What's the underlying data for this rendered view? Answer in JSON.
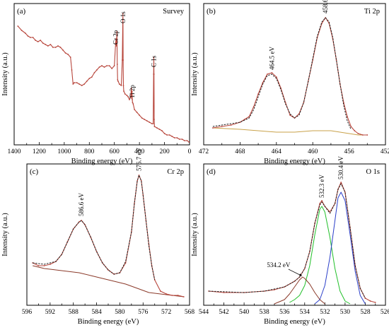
{
  "colors": {
    "data": "#b8463c",
    "envelope": "#222222",
    "background_fit": "#c9a24a",
    "background_brown": "#8b3a2a",
    "peak_blue": "#2b3fc9",
    "peak_green": "#22c02a",
    "peak_purple": "#7a2a9a",
    "peak_brown": "#8b3a2a"
  },
  "chart_data": [
    {
      "type": "line",
      "panel_label": "(a)",
      "title": "Survey",
      "xlabel": "Binding energy (eV)",
      "ylabel": "Intensity (a.u.)",
      "xlim": [
        1400,
        0
      ],
      "xticks": [
        "1400",
        "1200",
        "1000",
        "800",
        "600",
        "400",
        "200",
        "0"
      ],
      "y_ticks_labeled": false,
      "series": [
        {
          "role": "spectrum",
          "color": "#b8463c",
          "x": [
            1370,
            1340,
            1310,
            1290,
            1270,
            1250,
            1230,
            1210,
            1190,
            1170,
            1150,
            1130,
            1110,
            1090,
            1070,
            1050,
            1030,
            1010,
            990,
            970,
            950,
            940,
            930,
            920,
            900,
            880,
            860,
            840,
            820,
            800,
            780,
            760,
            740,
            720,
            700,
            680,
            660,
            640,
            620,
            600,
            590,
            586,
            583,
            580,
            577,
            574,
            570,
            560,
            545,
            537,
            532,
            530,
            528,
            525,
            515,
            500,
            490,
            480,
            470,
            464,
            462,
            459,
            457,
            455,
            450,
            440,
            420,
            400,
            380,
            360,
            340,
            320,
            300,
            290,
            287,
            285,
            284,
            282,
            280,
            260,
            240,
            220,
            200,
            180,
            160,
            140,
            120,
            100,
            80,
            60,
            40,
            20,
            5
          ],
          "y": [
            0.84,
            0.81,
            0.79,
            0.77,
            0.76,
            0.76,
            0.74,
            0.73,
            0.74,
            0.72,
            0.71,
            0.7,
            0.71,
            0.69,
            0.69,
            0.7,
            0.69,
            0.67,
            0.65,
            0.64,
            0.62,
            0.53,
            0.43,
            0.44,
            0.44,
            0.43,
            0.42,
            0.43,
            0.45,
            0.47,
            0.48,
            0.51,
            0.53,
            0.55,
            0.56,
            0.55,
            0.56,
            0.56,
            0.54,
            0.56,
            0.72,
            0.75,
            0.7,
            0.8,
            0.57,
            0.46,
            0.45,
            0.43,
            0.42,
            0.6,
            0.93,
            0.6,
            0.42,
            0.38,
            0.36,
            0.35,
            0.34,
            0.32,
            0.34,
            0.4,
            0.33,
            0.38,
            0.32,
            0.3,
            0.29,
            0.25,
            0.23,
            0.21,
            0.19,
            0.18,
            0.17,
            0.16,
            0.15,
            0.15,
            0.5,
            0.62,
            0.5,
            0.18,
            0.13,
            0.12,
            0.11,
            0.1,
            0.08,
            0.07,
            0.07,
            0.06,
            0.05,
            0.05,
            0.04,
            0.04,
            0.03,
            0.03,
            0.02
          ]
        }
      ],
      "annotations": [
        {
          "text": "Cr 2p",
          "x": 590,
          "y": 0.82
        },
        {
          "text": "O 1s",
          "x": 530,
          "y": 0.97
        },
        {
          "text": "Ti 2p",
          "x": 458,
          "y": 0.44
        },
        {
          "text": "C 1s",
          "x": 285,
          "y": 0.66
        }
      ]
    },
    {
      "type": "line",
      "panel_label": "(b)",
      "title": "Ti 2p",
      "xlabel": "Binding energy (eV)",
      "ylabel": "Intensity (a.u.)",
      "xlim": [
        472,
        452
      ],
      "xticks": [
        "472",
        "468",
        "464",
        "460",
        "456",
        "452"
      ],
      "y_ticks_labeled": false,
      "series": [
        {
          "role": "spectrum",
          "color": "#b8463c",
          "x": [
            471,
            470,
            469,
            468,
            467.5,
            467,
            466.5,
            466,
            465.5,
            465,
            464.5,
            464,
            463.5,
            463,
            462.5,
            462,
            461.5,
            461,
            460.5,
            460,
            459.5,
            459,
            458.6,
            458.2,
            457.8,
            457.4,
            457,
            456.6,
            456.2,
            455.8,
            455.4,
            455,
            454.5,
            454
          ],
          "y": [
            0.12,
            0.13,
            0.14,
            0.16,
            0.18,
            0.2,
            0.27,
            0.36,
            0.44,
            0.5,
            0.51,
            0.48,
            0.4,
            0.3,
            0.21,
            0.19,
            0.22,
            0.3,
            0.45,
            0.6,
            0.76,
            0.86,
            0.9,
            0.86,
            0.75,
            0.6,
            0.43,
            0.3,
            0.2,
            0.13,
            0.1,
            0.08,
            0.07,
            0.07
          ]
        },
        {
          "role": "fit-envelope",
          "color": "#222222",
          "dashed": true,
          "x": [
            471,
            470,
            469,
            468,
            467,
            466.5,
            466,
            465.5,
            465,
            464.5,
            464,
            463.5,
            463,
            462.5,
            462,
            461.5,
            461,
            460.5,
            460,
            459.5,
            459,
            458.6,
            458.2,
            457.8,
            457.4,
            457,
            456.6,
            456.2,
            455.8
          ],
          "y": [
            0.13,
            0.14,
            0.15,
            0.16,
            0.19,
            0.25,
            0.34,
            0.43,
            0.49,
            0.5,
            0.47,
            0.39,
            0.29,
            0.22,
            0.19,
            0.21,
            0.3,
            0.45,
            0.61,
            0.77,
            0.87,
            0.9,
            0.87,
            0.76,
            0.6,
            0.43,
            0.28,
            0.17,
            0.11
          ]
        },
        {
          "role": "background",
          "color": "#c9a24a",
          "x": [
            471,
            468,
            466,
            464,
            462,
            460,
            458,
            457,
            456,
            455,
            454
          ],
          "y": [
            0.12,
            0.11,
            0.1,
            0.09,
            0.09,
            0.1,
            0.1,
            0.09,
            0.08,
            0.07,
            0.07
          ]
        }
      ],
      "peak_labels": [
        {
          "text": "464.5 eV",
          "x": 464.5,
          "y": 0.53
        },
        {
          "text": "458.6 eV",
          "x": 458.6,
          "y": 0.93
        }
      ]
    },
    {
      "type": "line",
      "panel_label": "(c)",
      "title": "Cr 2p",
      "xlabel": "Binding energy (eV)",
      "ylabel": "Intensity (a.u.)",
      "xlim": [
        596,
        568
      ],
      "xticks": [
        "596",
        "592",
        "588",
        "584",
        "580",
        "576",
        "572",
        "568"
      ],
      "y_ticks_labeled": false,
      "series": [
        {
          "role": "spectrum",
          "color": "#b8463c",
          "x": [
            595,
            594,
            593,
            592,
            591,
            590,
            589,
            588,
            587,
            586.6,
            586,
            585,
            584,
            583,
            582,
            581,
            580,
            579,
            578,
            577.5,
            577,
            576.7,
            576.3,
            576,
            575.5,
            575,
            574.5,
            574,
            573,
            572,
            571,
            570,
            569
          ],
          "y": [
            0.3,
            0.28,
            0.28,
            0.29,
            0.31,
            0.36,
            0.45,
            0.54,
            0.59,
            0.6,
            0.57,
            0.48,
            0.38,
            0.3,
            0.25,
            0.22,
            0.23,
            0.3,
            0.52,
            0.72,
            0.88,
            0.92,
            0.88,
            0.78,
            0.6,
            0.43,
            0.28,
            0.18,
            0.1,
            0.08,
            0.07,
            0.07,
            0.06
          ]
        },
        {
          "role": "fit-envelope",
          "color": "#222222",
          "dashed": true,
          "x": [
            595,
            593,
            591,
            590,
            589,
            588,
            587,
            586.6,
            586,
            585,
            584,
            583,
            582,
            581,
            580,
            579,
            578,
            577.5,
            577,
            576.7,
            576.3,
            576,
            575.5,
            575,
            574.5,
            574
          ],
          "y": [
            0.3,
            0.29,
            0.31,
            0.36,
            0.45,
            0.54,
            0.59,
            0.6,
            0.57,
            0.48,
            0.38,
            0.3,
            0.25,
            0.22,
            0.23,
            0.31,
            0.52,
            0.72,
            0.88,
            0.92,
            0.88,
            0.78,
            0.6,
            0.42,
            0.28,
            0.18
          ]
        },
        {
          "role": "background",
          "color": "#8b3a2a",
          "x": [
            595,
            593,
            591,
            589,
            587,
            585,
            583,
            581,
            579,
            577,
            575,
            573,
            571,
            569
          ],
          "y": [
            0.28,
            0.26,
            0.25,
            0.24,
            0.23,
            0.21,
            0.19,
            0.17,
            0.15,
            0.12,
            0.09,
            0.08,
            0.07,
            0.06
          ]
        }
      ],
      "peak_labels": [
        {
          "text": "586.6 eV",
          "x": 586.6,
          "y": 0.63
        },
        {
          "text": "576.7 eV",
          "x": 576.7,
          "y": 0.95
        }
      ]
    },
    {
      "type": "line",
      "panel_label": "(d)",
      "title": "O 1s",
      "xlabel": "Binding energy (eV)",
      "ylabel": "Intensity (a.u.)",
      "xlim": [
        544,
        526
      ],
      "xticks": [
        "544",
        "542",
        "540",
        "538",
        "536",
        "534",
        "532",
        "530",
        "528",
        "526"
      ],
      "y_ticks_labeled": false,
      "series": [
        {
          "role": "spectrum",
          "color": "#b8463c",
          "x": [
            543.5,
            542,
            540,
            538,
            537,
            536,
            535,
            534.5,
            534,
            533.5,
            533,
            532.5,
            532.3,
            532,
            531.5,
            531,
            530.7,
            530.4,
            530,
            529.5,
            529,
            528.5,
            528,
            527.5,
            527
          ],
          "y": [
            0.1,
            0.09,
            0.09,
            0.1,
            0.11,
            0.13,
            0.17,
            0.2,
            0.26,
            0.38,
            0.58,
            0.72,
            0.74,
            0.7,
            0.66,
            0.72,
            0.82,
            0.87,
            0.8,
            0.55,
            0.28,
            0.12,
            0.05,
            0.03,
            0.02
          ]
        },
        {
          "role": "fit-envelope",
          "color": "#222222",
          "dashed": true,
          "x": [
            543.5,
            540,
            538,
            536,
            535,
            534.5,
            534,
            533.5,
            533,
            532.5,
            532.3,
            532,
            531.5,
            531,
            530.7,
            530.4,
            530,
            529.5,
            529,
            528.5,
            528
          ],
          "y": [
            0.1,
            0.09,
            0.1,
            0.13,
            0.17,
            0.2,
            0.26,
            0.38,
            0.58,
            0.71,
            0.73,
            0.7,
            0.65,
            0.72,
            0.82,
            0.86,
            0.8,
            0.55,
            0.28,
            0.12,
            0.05
          ]
        },
        {
          "role": "peak",
          "color": "#22c02a",
          "x": [
            535.5,
            535,
            534.5,
            534,
            533.5,
            533,
            532.5,
            532.3,
            532,
            531.5,
            531,
            530.5,
            530,
            529.5
          ],
          "y": [
            0.02,
            0.04,
            0.07,
            0.14,
            0.28,
            0.5,
            0.68,
            0.7,
            0.66,
            0.48,
            0.26,
            0.1,
            0.03,
            0.01
          ]
        },
        {
          "role": "peak",
          "color": "#2b3fc9",
          "x": [
            533,
            532.5,
            532,
            531.5,
            531,
            530.7,
            530.4,
            530,
            529.5,
            529,
            528.5,
            528
          ],
          "y": [
            0.01,
            0.04,
            0.14,
            0.34,
            0.6,
            0.76,
            0.8,
            0.74,
            0.5,
            0.24,
            0.07,
            0.01
          ]
        },
        {
          "role": "peak",
          "color": "#8b3a2a",
          "x": [
            537,
            536,
            535.5,
            535,
            534.5,
            534.2,
            534,
            533.5,
            533,
            532.5,
            532
          ],
          "y": [
            0.01,
            0.04,
            0.08,
            0.13,
            0.18,
            0.2,
            0.19,
            0.15,
            0.09,
            0.04,
            0.01
          ]
        }
      ],
      "peak_labels": [
        {
          "text": "534.2 eV",
          "x": 534.2,
          "y": 0.2
        },
        {
          "text": "532.3 eV",
          "x": 532.3,
          "y": 0.76
        },
        {
          "text": "530.4 eV",
          "x": 530.4,
          "y": 0.89
        }
      ]
    }
  ]
}
